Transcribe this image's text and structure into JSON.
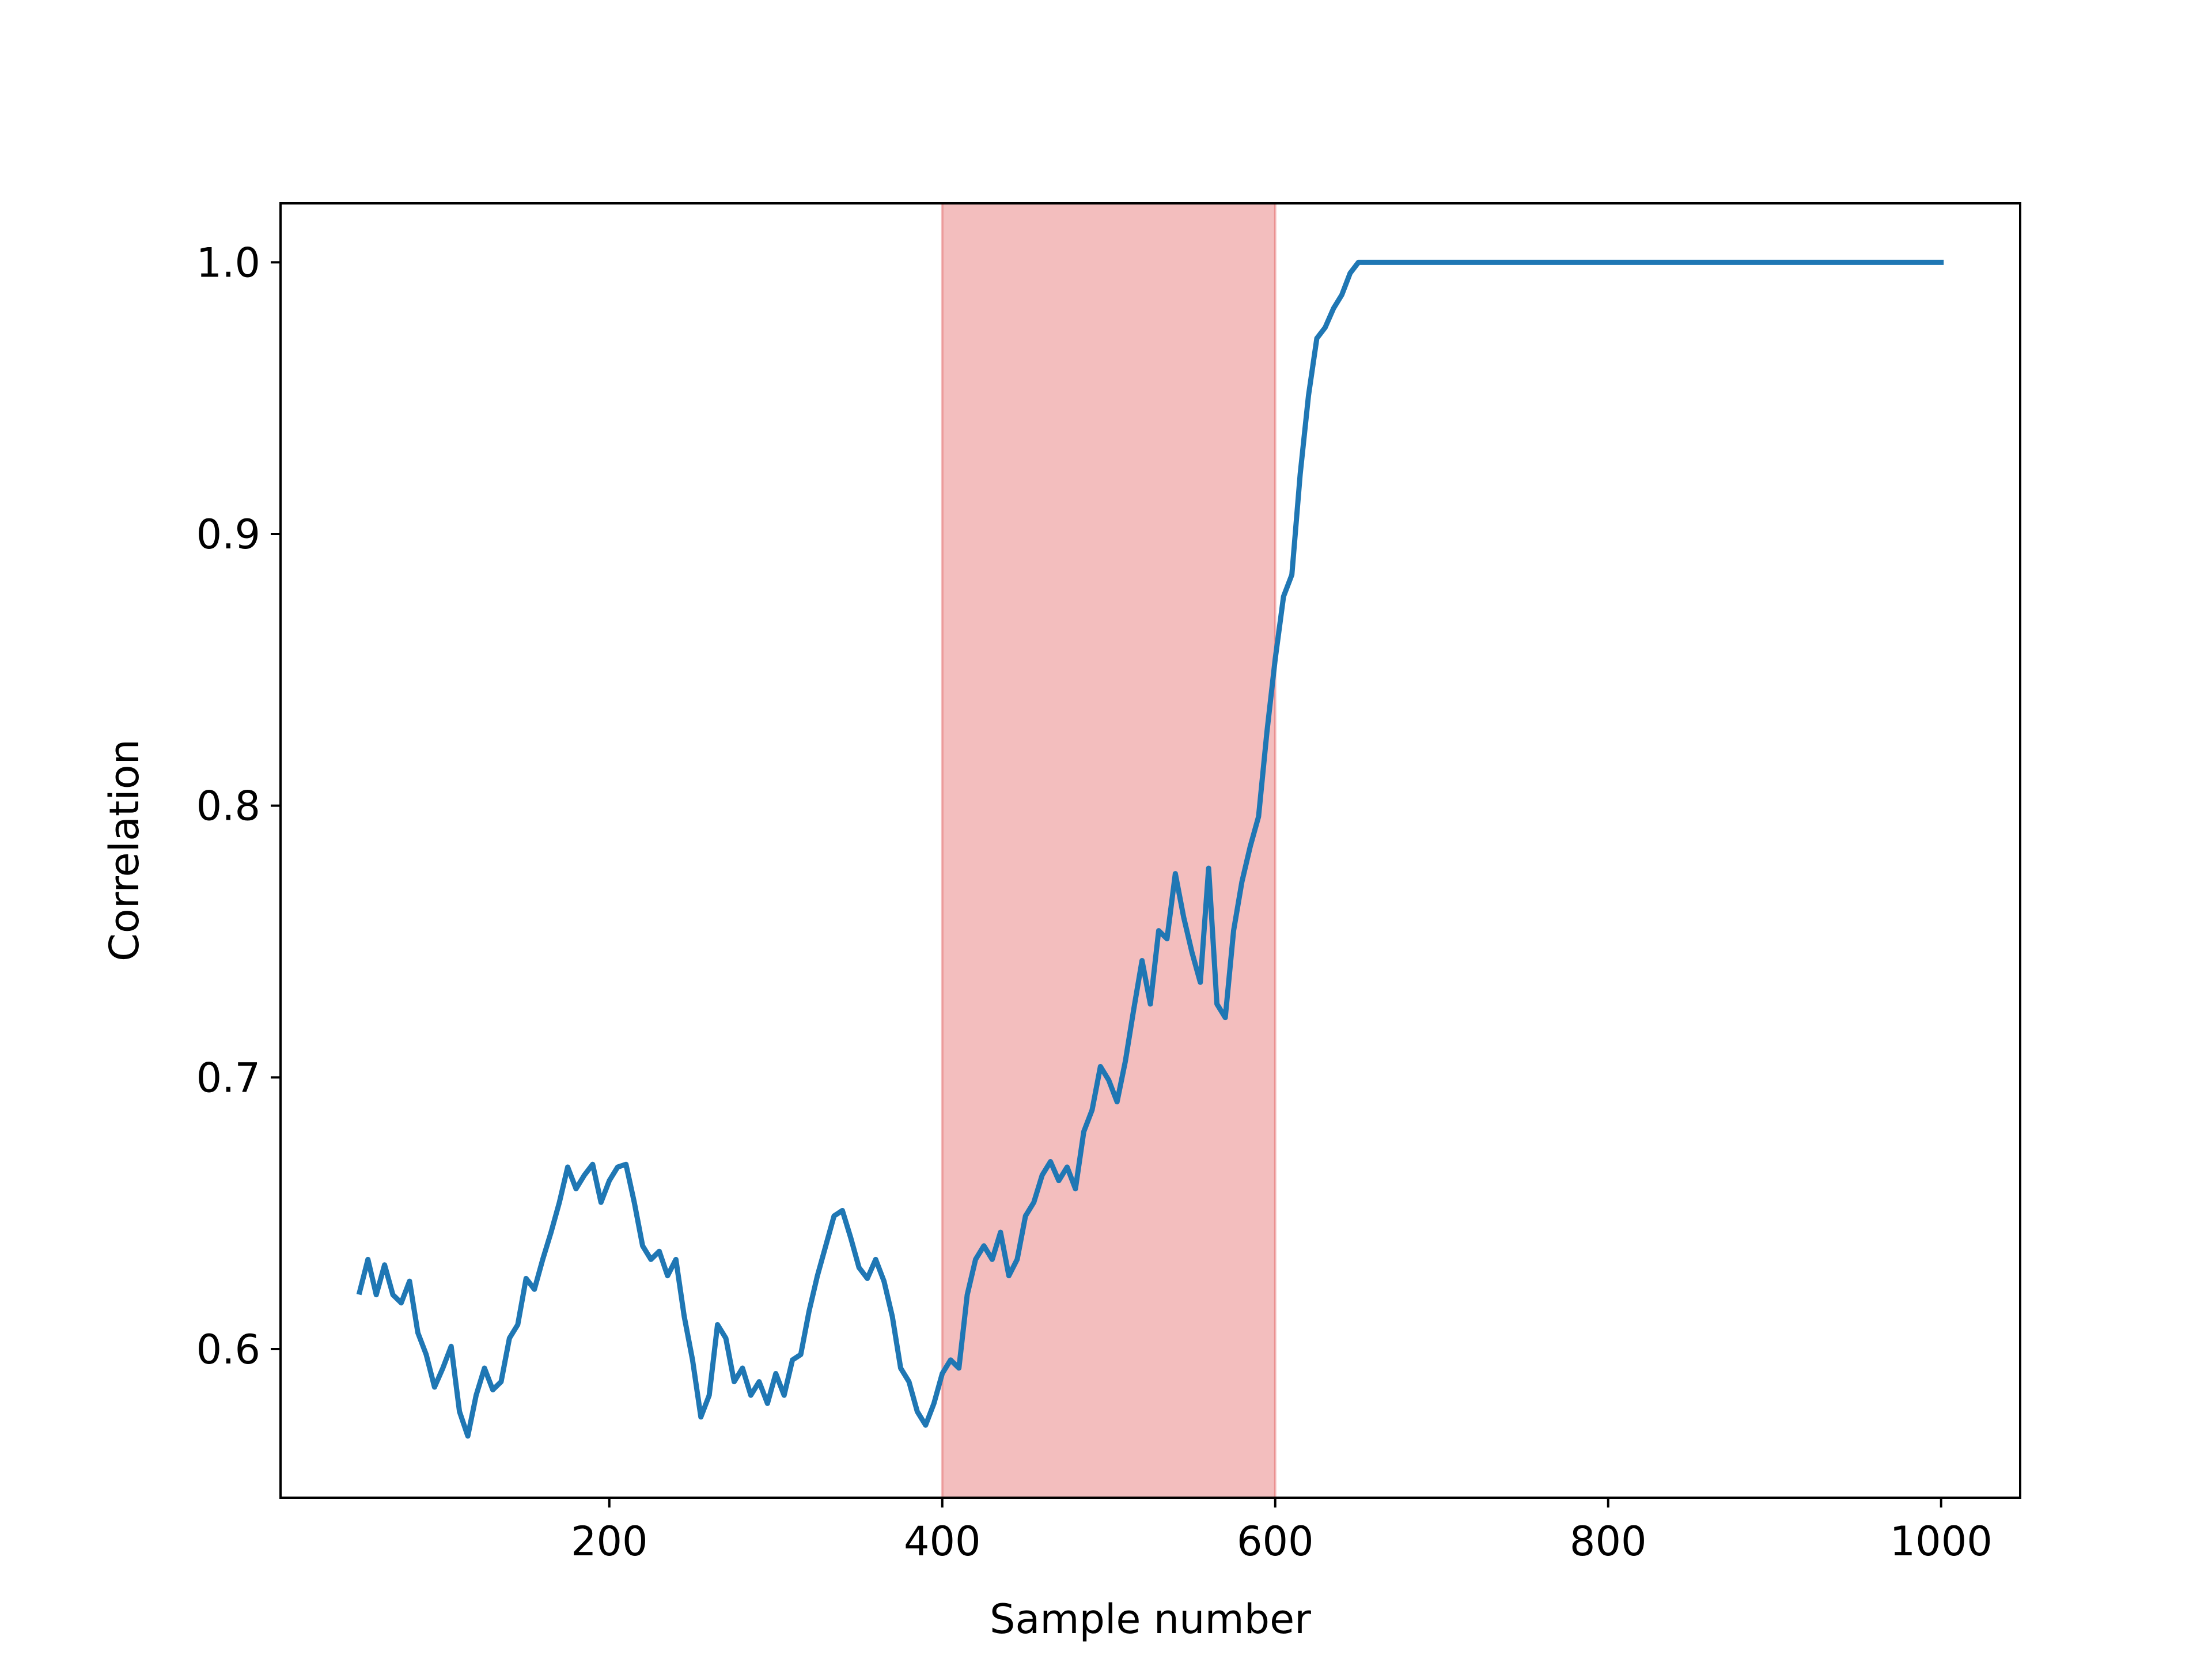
{
  "chart_data": {
    "type": "line",
    "xlabel": "Sample number",
    "ylabel": "Correlation",
    "x": [
      50,
      55,
      60,
      65,
      70,
      75,
      80,
      85,
      90,
      95,
      100,
      105,
      110,
      115,
      120,
      125,
      130,
      135,
      140,
      145,
      150,
      155,
      160,
      165,
      170,
      175,
      180,
      185,
      190,
      195,
      200,
      205,
      210,
      215,
      220,
      225,
      230,
      235,
      240,
      245,
      250,
      255,
      260,
      265,
      270,
      275,
      280,
      285,
      290,
      295,
      300,
      305,
      310,
      315,
      320,
      325,
      330,
      335,
      340,
      345,
      350,
      355,
      360,
      365,
      370,
      375,
      380,
      385,
      390,
      395,
      400,
      405,
      410,
      415,
      420,
      425,
      430,
      435,
      440,
      445,
      450,
      455,
      460,
      465,
      470,
      475,
      480,
      485,
      490,
      495,
      500,
      505,
      510,
      515,
      520,
      525,
      530,
      535,
      540,
      545,
      550,
      555,
      560,
      565,
      570,
      575,
      580,
      585,
      590,
      595,
      600,
      605,
      610,
      615,
      620,
      625,
      630,
      635,
      640,
      645,
      650,
      1000
    ],
    "values": [
      0.621,
      0.633,
      0.62,
      0.631,
      0.62,
      0.617,
      0.625,
      0.606,
      0.598,
      0.586,
      0.593,
      0.601,
      0.577,
      0.568,
      0.583,
      0.593,
      0.585,
      0.588,
      0.604,
      0.609,
      0.626,
      0.622,
      0.633,
      0.643,
      0.654,
      0.667,
      0.659,
      0.664,
      0.668,
      0.654,
      0.662,
      0.667,
      0.668,
      0.654,
      0.638,
      0.633,
      0.636,
      0.627,
      0.633,
      0.612,
      0.596,
      0.575,
      0.583,
      0.609,
      0.604,
      0.588,
      0.593,
      0.583,
      0.588,
      0.58,
      0.591,
      0.583,
      0.596,
      0.598,
      0.614,
      0.627,
      0.638,
      0.649,
      0.651,
      0.641,
      0.63,
      0.626,
      0.633,
      0.625,
      0.612,
      0.593,
      0.588,
      0.577,
      0.572,
      0.58,
      0.591,
      0.596,
      0.593,
      0.62,
      0.633,
      0.638,
      0.633,
      0.643,
      0.627,
      0.633,
      0.649,
      0.654,
      0.664,
      0.669,
      0.662,
      0.667,
      0.659,
      0.68,
      0.688,
      0.704,
      0.699,
      0.691,
      0.706,
      0.725,
      0.743,
      0.727,
      0.754,
      0.751,
      0.775,
      0.759,
      0.746,
      0.735,
      0.777,
      0.727,
      0.722,
      0.754,
      0.772,
      0.785,
      0.796,
      0.827,
      0.854,
      0.877,
      0.885,
      0.922,
      0.951,
      0.972,
      0.976,
      0.983,
      0.988,
      0.996,
      1.0,
      1.0
    ],
    "color": "#1f77b4",
    "highlight_span": [
      400,
      600
    ],
    "highlight_color": "#d62728",
    "xlim": [
      2.5,
      1047.5
    ],
    "ylim": [
      0.5453,
      1.0217
    ],
    "xticks": [
      200,
      400,
      600,
      800,
      1000
    ],
    "yticks": [
      0.6,
      0.7,
      0.8,
      0.9,
      {
        "value": 1,
        "label": "1.0"
      }
    ]
  }
}
